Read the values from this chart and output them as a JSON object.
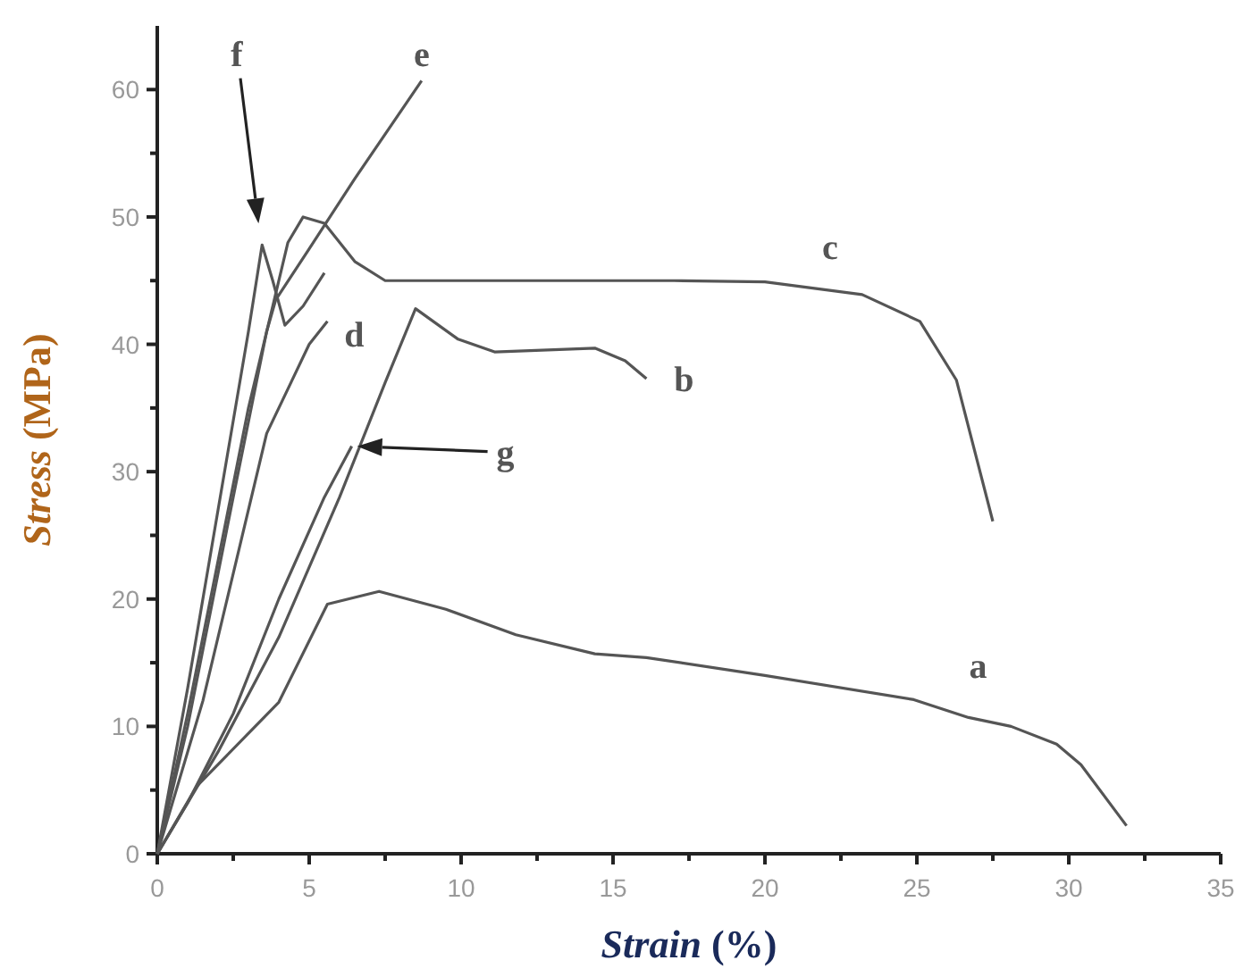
{
  "chart_data": {
    "type": "line",
    "xlabel": "Strain (%)",
    "ylabel": "Stress (MPa)",
    "xlim": [
      0,
      35
    ],
    "ylim": [
      0,
      65
    ],
    "xticks": [
      0,
      {
        "value": 2.5,
        "label": null
      },
      5,
      {
        "value": 7.5,
        "label": null
      },
      10,
      {
        "value": 12.5,
        "label": null
      },
      15,
      {
        "value": 17.5,
        "label": null
      },
      20,
      {
        "value": 22.5,
        "label": null
      },
      25,
      {
        "value": 27.5,
        "label": null
      },
      30,
      {
        "value": 32.5,
        "label": null
      },
      35
    ],
    "yticks": [
      0,
      {
        "value": 5,
        "label": null
      },
      10,
      {
        "value": 15,
        "label": null
      },
      20,
      {
        "value": 25,
        "label": null
      },
      30,
      {
        "value": 35,
        "label": null
      },
      40,
      {
        "value": 45,
        "label": null
      },
      50,
      {
        "value": 55,
        "label": null
      },
      60
    ],
    "line_style": "solid",
    "series": [
      {
        "name": "a",
        "color": "#555555",
        "x": [
          0,
          1.3,
          4.0,
          5.6,
          7.3,
          9.5,
          11.8,
          14.4,
          16.1,
          20,
          24.9,
          26.7,
          28.1,
          29.6,
          30.4,
          31.9
        ],
        "values": [
          0,
          5.3,
          11.9,
          19.6,
          20.6,
          19.2,
          17.2,
          15.7,
          15.4,
          14.0,
          12.1,
          10.7,
          10.0,
          8.6,
          7.0,
          2.2
        ]
      },
      {
        "name": "b",
        "color": "#555555",
        "x": [
          0,
          2,
          4,
          6,
          7.5,
          8.5,
          9.9,
          11.1,
          14.4,
          15.4,
          16.1
        ],
        "values": [
          0,
          8,
          17,
          28,
          37,
          42.8,
          40.4,
          39.4,
          39.7,
          38.7,
          37.3
        ]
      },
      {
        "name": "c",
        "color": "#555555",
        "x": [
          0,
          1,
          2,
          3,
          3.8,
          4.3,
          4.8,
          5.5,
          6.5,
          7.5,
          12,
          17,
          20,
          23.2,
          25.1,
          26.3,
          27.5
        ],
        "values": [
          0,
          11,
          23,
          35,
          43,
          48,
          50,
          49.5,
          46.5,
          45,
          45,
          45,
          44.9,
          43.9,
          41.8,
          37.2,
          26.1
        ]
      },
      {
        "name": "d",
        "color": "#555555",
        "x": [
          0,
          1.5,
          3,
          3.6,
          4.4,
          5,
          5.6
        ],
        "values": [
          0,
          12,
          27,
          33,
          37,
          40,
          41.8
        ]
      },
      {
        "name": "e",
        "color": "#555555",
        "x": [
          0,
          1,
          2.5,
          3.6,
          3.9,
          5,
          6.5,
          8.7
        ],
        "values": [
          0,
          10,
          28,
          41,
          43.5,
          47.5,
          53,
          60.7
        ]
      },
      {
        "color": "#555555",
        "x": [
          0,
          1,
          2,
          3,
          3.45,
          3.8,
          4.2,
          4.8,
          5.5
        ],
        "values": [
          0,
          13,
          27,
          41,
          47.8,
          45,
          41.5,
          43,
          45.6
        ]
      },
      {
        "color": "#555555",
        "x": [
          0,
          1,
          2.5,
          4,
          5.5,
          6.4
        ],
        "values": [
          0,
          4,
          11,
          20,
          28,
          32
        ]
      }
    ],
    "annotations": [
      "f",
      "g"
    ]
  }
}
